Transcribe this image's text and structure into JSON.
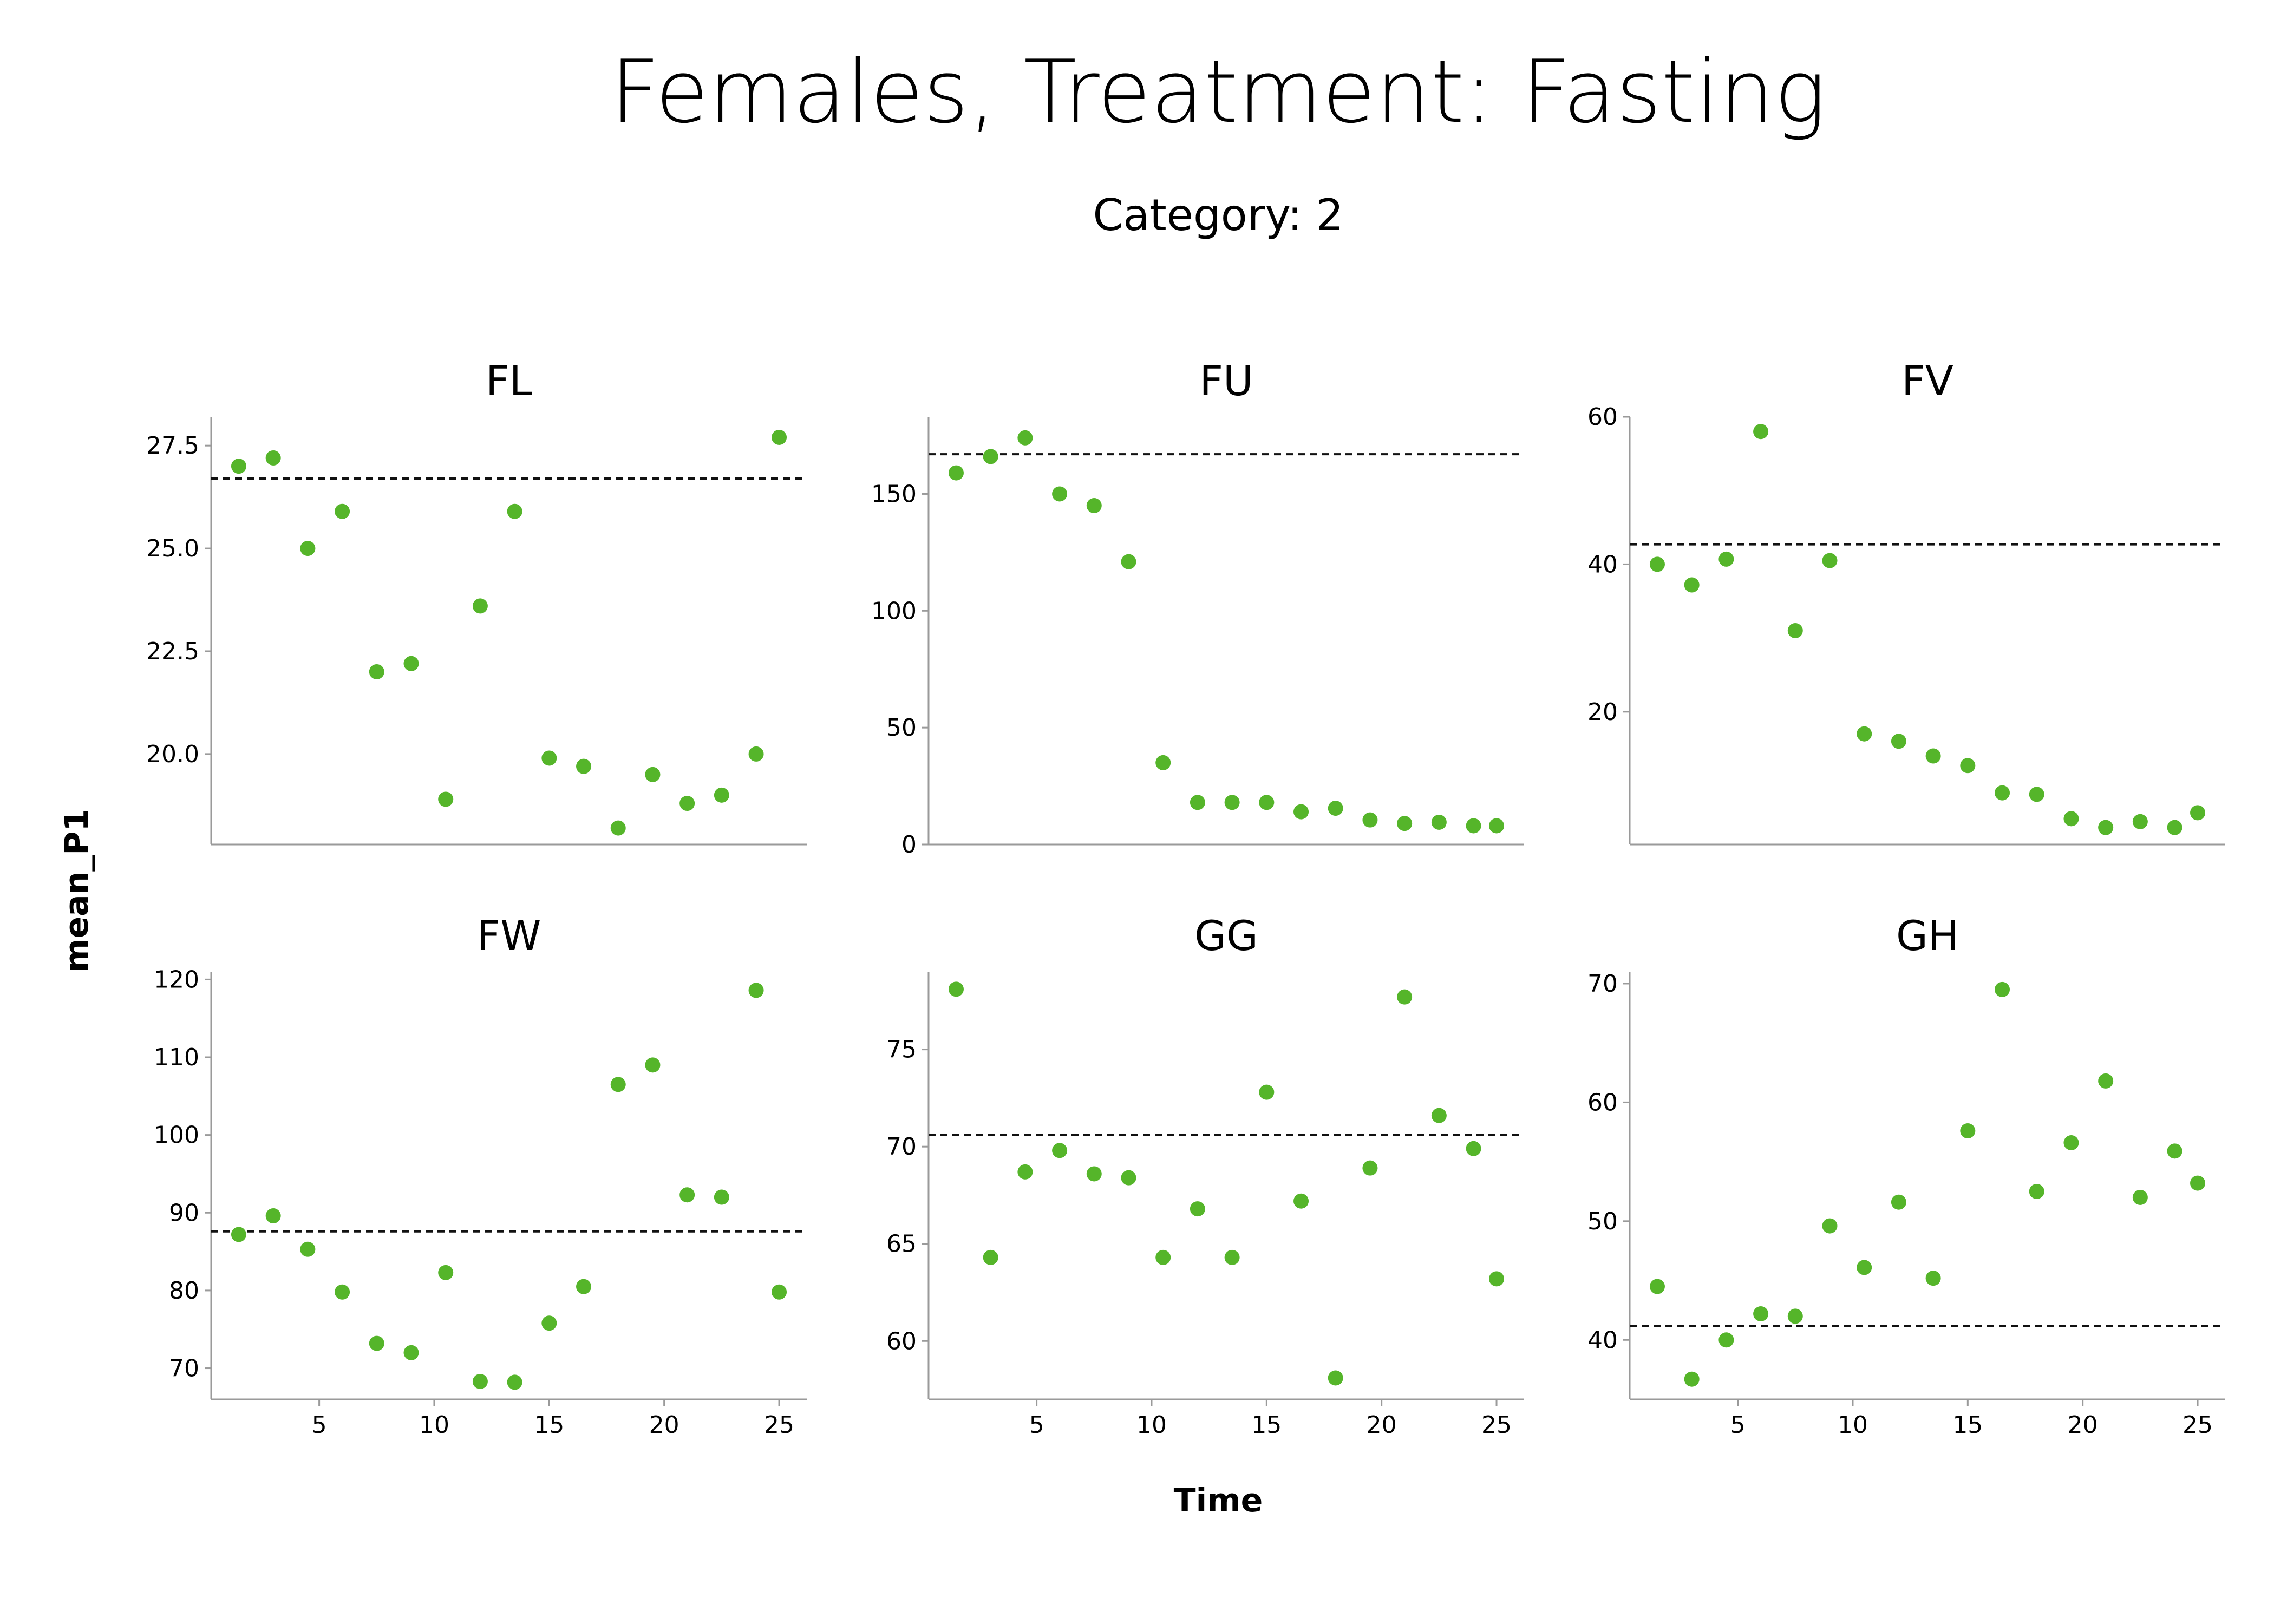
{
  "title": "Females, Treatment: Fasting",
  "subtitle": "Category: 2",
  "x_axis_label": "Time",
  "y_axis_label": "mean_P1",
  "colors": {
    "points": "#55b52a",
    "reference_line": "#111111",
    "axis": "#9a9a9a"
  },
  "chart_data": [
    {
      "type": "scatter",
      "title": "FL",
      "xlim": [
        0.3,
        26.2
      ],
      "ylim": [
        17.8,
        28.2
      ],
      "xticks": [
        5,
        10,
        15,
        20,
        25
      ],
      "yticks": [
        20.0,
        22.5,
        25.0,
        27.5
      ],
      "ytick_labels": [
        "20.0",
        "22.5",
        "25.0",
        "27.5"
      ],
      "reference_y": 26.7,
      "x": [
        1.5,
        3,
        4.5,
        6,
        7.5,
        9,
        10.5,
        12,
        13.5,
        15,
        16.5,
        18,
        19.5,
        21,
        22.5,
        24,
        25
      ],
      "y": [
        27.0,
        27.2,
        25.0,
        25.9,
        22.0,
        22.2,
        18.9,
        23.6,
        25.9,
        19.9,
        19.7,
        18.2,
        19.5,
        18.8,
        19.0,
        20.0,
        27.7
      ]
    },
    {
      "type": "scatter",
      "title": "FU",
      "xlim": [
        0.3,
        26.2
      ],
      "ylim": [
        0,
        183
      ],
      "xticks": [
        5,
        10,
        15,
        20,
        25
      ],
      "yticks": [
        0,
        50,
        100,
        150
      ],
      "ytick_labels": [
        "0",
        "50",
        "100",
        "150"
      ],
      "reference_y": 167,
      "x": [
        1.5,
        3,
        4.5,
        6,
        7.5,
        9,
        10.5,
        12,
        13.5,
        15,
        16.5,
        18,
        19.5,
        21,
        22.5,
        24,
        25
      ],
      "y": [
        159,
        166,
        174,
        150,
        145,
        121,
        35,
        18,
        18,
        18,
        14,
        15.5,
        10.5,
        9,
        9.5,
        8,
        8
      ]
    },
    {
      "type": "scatter",
      "title": "FV",
      "xlim": [
        0.3,
        26.2
      ],
      "ylim": [
        2,
        60
      ],
      "xticks": [
        5,
        10,
        15,
        20,
        25
      ],
      "yticks": [
        20,
        40,
        60
      ],
      "ytick_labels": [
        "20",
        "40",
        "60"
      ],
      "reference_y": 42.7,
      "x": [
        1.5,
        3,
        4.5,
        6,
        7.5,
        9,
        10.5,
        12,
        13.5,
        15,
        16.5,
        18,
        19.5,
        21,
        22.5,
        24,
        25
      ],
      "y": [
        40,
        37.2,
        40.7,
        58,
        31,
        40.5,
        17,
        16,
        14,
        12.7,
        9,
        8.8,
        5.5,
        4.3,
        5.1,
        4.3,
        6.3
      ]
    },
    {
      "type": "scatter",
      "title": "FW",
      "xlim": [
        0.3,
        26.2
      ],
      "ylim": [
        66,
        121
      ],
      "xticks": [
        5,
        10,
        15,
        20,
        25
      ],
      "yticks": [
        70,
        80,
        90,
        100,
        110,
        120
      ],
      "ytick_labels": [
        "70",
        "80",
        "90",
        "100",
        "110",
        "120"
      ],
      "reference_y": 87.6,
      "x": [
        1.5,
        3,
        4.5,
        6,
        7.5,
        9,
        10.5,
        12,
        13.5,
        15,
        16.5,
        18,
        19.5,
        21,
        22.5,
        24,
        25
      ],
      "y": [
        87.2,
        89.6,
        85.3,
        79.8,
        73.2,
        72.0,
        82.3,
        68.3,
        68.2,
        75.8,
        80.5,
        106.5,
        109.0,
        92.3,
        92.0,
        118.6,
        79.8
      ]
    },
    {
      "type": "scatter",
      "title": "GG",
      "xlim": [
        0.3,
        26.2
      ],
      "ylim": [
        57,
        79
      ],
      "xticks": [
        5,
        10,
        15,
        20,
        25
      ],
      "yticks": [
        60,
        65,
        70,
        75
      ],
      "ytick_labels": [
        "60",
        "65",
        "70",
        "75"
      ],
      "reference_y": 70.6,
      "x": [
        1.5,
        3,
        4.5,
        6,
        7.5,
        9,
        10.5,
        12,
        13.5,
        15,
        16.5,
        18,
        19.5,
        21,
        22.5,
        24,
        25
      ],
      "y": [
        78.1,
        64.3,
        68.7,
        69.8,
        68.6,
        68.4,
        64.3,
        66.8,
        64.3,
        72.8,
        67.2,
        58.1,
        68.9,
        77.7,
        71.6,
        69.9,
        63.2
      ]
    },
    {
      "type": "scatter",
      "title": "GH",
      "xlim": [
        0.3,
        26.2
      ],
      "ylim": [
        35,
        71
      ],
      "xticks": [
        5,
        10,
        15,
        20,
        25
      ],
      "yticks": [
        40,
        50,
        60,
        70
      ],
      "ytick_labels": [
        "40",
        "50",
        "60",
        "70"
      ],
      "reference_y": 41.2,
      "x": [
        1.5,
        3,
        4.5,
        6,
        7.5,
        9,
        10.5,
        12,
        13.5,
        15,
        16.5,
        18,
        19.5,
        21,
        22.5,
        24,
        25
      ],
      "y": [
        44.5,
        36.7,
        40.0,
        42.2,
        42.0,
        49.6,
        46.1,
        51.6,
        45.2,
        57.6,
        69.5,
        52.5,
        56.6,
        61.8,
        52.0,
        55.9,
        53.2
      ]
    }
  ]
}
